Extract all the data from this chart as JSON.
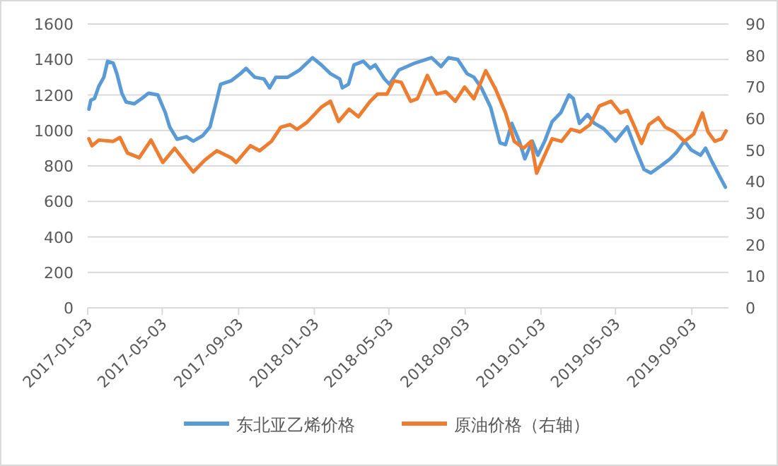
{
  "chart_data": {
    "type": "line",
    "legend": "bottom",
    "grid": "y",
    "xlim": [
      "2017-01-03",
      "2019-11-01"
    ],
    "xticks": [
      "2017-01-03",
      "2017-05-03",
      "2017-09-03",
      "2018-01-03",
      "2018-05-03",
      "2018-09-03",
      "2019-01-03",
      "2019-05-03",
      "2019-09-03"
    ],
    "ylim": [
      0,
      1600
    ],
    "yticks": [
      0,
      200,
      400,
      600,
      800,
      1000,
      1200,
      1400,
      1600
    ],
    "y2lim": [
      0,
      90
    ],
    "y2ticks": [
      0,
      10,
      20,
      30,
      40,
      50,
      60,
      70,
      80,
      90
    ],
    "series": [
      {
        "name": "东北亚乙烯价格",
        "color": "#5b9bd5",
        "x": [
          "2017-01-05",
          "2017-01-08",
          "2017-01-14",
          "2017-01-21",
          "2017-01-29",
          "2017-02-04",
          "2017-02-13",
          "2017-02-19",
          "2017-02-27",
          "2017-03-06",
          "2017-03-19",
          "2017-03-31",
          "2017-04-11",
          "2017-04-26",
          "2017-05-08",
          "2017-05-15",
          "2017-05-27",
          "2017-06-11",
          "2017-06-22",
          "2017-07-07",
          "2017-07-19",
          "2017-07-29",
          "2017-08-05",
          "2017-08-22",
          "2017-09-06",
          "2017-09-15",
          "2017-09-29",
          "2017-10-14",
          "2017-10-23",
          "2017-11-02",
          "2017-11-21",
          "2017-12-10",
          "2017-12-31",
          "2018-01-14",
          "2018-01-29",
          "2018-02-13",
          "2018-02-17",
          "2018-02-27",
          "2018-03-08",
          "2018-03-23",
          "2018-04-03",
          "2018-04-11",
          "2018-04-26",
          "2018-05-04",
          "2018-05-19",
          "2018-06-14",
          "2018-07-11",
          "2018-07-26",
          "2018-08-07",
          "2018-08-22",
          "2018-09-06",
          "2018-09-17",
          "2018-09-29",
          "2018-10-14",
          "2018-10-29",
          "2018-11-07",
          "2018-11-17",
          "2018-11-29",
          "2018-12-08",
          "2018-12-20",
          "2018-12-29",
          "2019-01-09",
          "2019-01-21",
          "2019-02-04",
          "2019-02-17",
          "2019-02-24",
          "2019-03-06",
          "2019-03-19",
          "2019-03-30",
          "2019-04-14",
          "2019-05-03",
          "2019-05-22",
          "2019-06-05",
          "2019-06-18",
          "2019-06-29",
          "2019-07-15",
          "2019-07-30",
          "2019-08-10",
          "2019-08-22",
          "2019-09-02",
          "2019-09-17",
          "2019-09-25",
          "2019-10-06",
          "2019-10-18",
          "2019-10-27"
        ],
        "values": [
          1120,
          1170,
          1180,
          1250,
          1300,
          1390,
          1380,
          1320,
          1210,
          1160,
          1150,
          1180,
          1210,
          1200,
          1100,
          1020,
          950,
          965,
          940,
          970,
          1020,
          1160,
          1260,
          1280,
          1320,
          1350,
          1300,
          1290,
          1240,
          1300,
          1300,
          1340,
          1410,
          1370,
          1320,
          1290,
          1240,
          1260,
          1370,
          1390,
          1350,
          1370,
          1290,
          1260,
          1340,
          1380,
          1410,
          1360,
          1410,
          1400,
          1320,
          1300,
          1240,
          1130,
          930,
          920,
          1040,
          940,
          840,
          940,
          860,
          940,
          1050,
          1100,
          1200,
          1180,
          1040,
          1090,
          1040,
          1010,
          940,
          1020,
          890,
          780,
          760,
          800,
          840,
          880,
          940,
          890,
          860,
          900,
          820,
          740,
          680
        ]
      },
      {
        "name": "原油价格（右轴）",
        "color": "#ed7d31",
        "axis": "y2",
        "x": [
          "2017-01-05",
          "2017-01-10",
          "2017-01-21",
          "2017-02-13",
          "2017-02-24",
          "2017-03-08",
          "2017-03-27",
          "2017-04-15",
          "2017-05-04",
          "2017-05-23",
          "2017-06-22",
          "2017-07-11",
          "2017-07-30",
          "2017-08-22",
          "2017-08-30",
          "2017-09-22",
          "2017-10-07",
          "2017-10-26",
          "2017-11-10",
          "2017-11-25",
          "2017-12-06",
          "2017-12-22",
          "2018-01-14",
          "2018-01-29",
          "2018-02-11",
          "2018-02-28",
          "2018-03-15",
          "2018-04-03",
          "2018-04-15",
          "2018-04-30",
          "2018-05-11",
          "2018-05-23",
          "2018-06-07",
          "2018-06-18",
          "2018-07-04",
          "2018-07-19",
          "2018-08-03",
          "2018-08-18",
          "2018-09-02",
          "2018-09-17",
          "2018-10-06",
          "2018-10-22",
          "2018-11-07",
          "2018-11-21",
          "2018-12-06",
          "2018-12-18",
          "2018-12-27",
          "2019-01-09",
          "2019-01-21",
          "2019-02-05",
          "2019-02-20",
          "2019-03-07",
          "2019-03-23",
          "2019-04-07",
          "2019-04-26",
          "2019-05-11",
          "2019-05-22",
          "2019-06-03",
          "2019-06-14",
          "2019-06-26",
          "2019-07-11",
          "2019-07-22",
          "2019-08-06",
          "2019-08-22",
          "2019-09-06",
          "2019-09-20",
          "2019-09-29",
          "2019-10-10",
          "2019-10-21",
          "2019-10-28"
        ],
        "values": [
          53.6,
          51.4,
          53.2,
          52.8,
          54,
          49.1,
          47.6,
          53.2,
          46.1,
          50.6,
          43.1,
          46.9,
          49.8,
          47.6,
          46.1,
          51.4,
          49.8,
          52.8,
          57.3,
          58.1,
          56.6,
          58.8,
          63.6,
          65.5,
          59.1,
          63,
          60.6,
          65.5,
          67.8,
          67.8,
          72,
          71.5,
          65.5,
          66.3,
          73.7,
          67.8,
          68.5,
          65.5,
          70,
          66.3,
          75.2,
          69.3,
          61.8,
          52.8,
          50.6,
          52.8,
          42.7,
          48.4,
          53.6,
          52.8,
          56.6,
          55.8,
          58.1,
          64,
          65.5,
          61.8,
          62.6,
          57.3,
          52.1,
          58.1,
          60.3,
          57.3,
          55.8,
          52.8,
          55.1,
          61.8,
          55.8,
          52.8,
          53.6,
          56.1
        ]
      }
    ]
  }
}
